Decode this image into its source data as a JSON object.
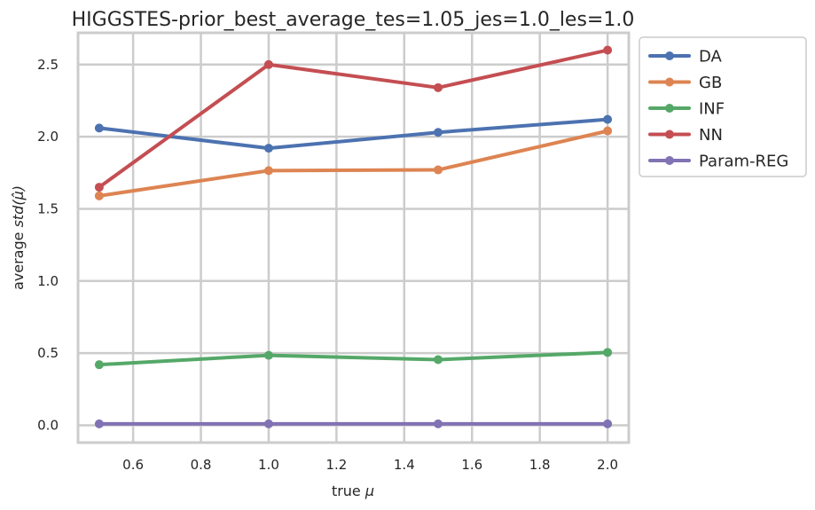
{
  "chart_data": {
    "type": "line",
    "title": "HIGGSTES-prior_best_average_tes=1.05_jes=1.0_les=1.0",
    "xlabel": "true",
    "xlabel_symbol": "μ",
    "ylabel": "average",
    "ylabel_symbol": "std(μ̂)",
    "x": [
      0.5,
      1.0,
      1.5,
      2.0
    ],
    "xlim": [
      0.4375,
      2.0625
    ],
    "ylim": [
      -0.12,
      2.72
    ],
    "xticks": [
      "0.6",
      "0.8",
      "1.0",
      "1.2",
      "1.4",
      "1.6",
      "1.8",
      "2.0"
    ],
    "yticks": [
      "0.0",
      "0.5",
      "1.0",
      "1.5",
      "2.0",
      "2.5"
    ],
    "grid": true,
    "legend_position": "outside-right-top",
    "series": [
      {
        "name": "DA",
        "color": "#4c72b0",
        "values": [
          2.06,
          1.92,
          2.03,
          2.12
        ]
      },
      {
        "name": "GB",
        "color": "#dd8452",
        "values": [
          1.59,
          1.765,
          1.77,
          2.04
        ]
      },
      {
        "name": "INF",
        "color": "#55a868",
        "values": [
          0.42,
          0.485,
          0.455,
          0.505
        ]
      },
      {
        "name": "NN",
        "color": "#c44e52",
        "values": [
          1.65,
          2.5,
          2.34,
          2.6
        ]
      },
      {
        "name": "Param-REG",
        "color": "#8172b3",
        "values": [
          0.01,
          0.01,
          0.01,
          0.01
        ]
      }
    ]
  }
}
